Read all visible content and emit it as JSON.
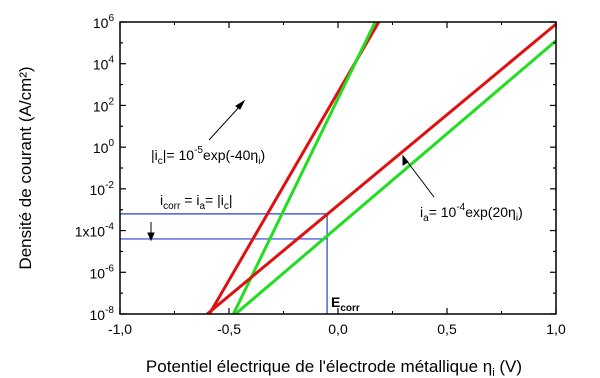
{
  "chart_data": {
    "type": "line",
    "xlabel": "Potentiel électrique de l'électrode métallique η",
    "xlabel_sub": "i",
    "xlabel_unit": " (V)",
    "ylabel": "Densité de courant (A/cm²)",
    "xlim": [
      -1.0,
      1.0
    ],
    "ylog": true,
    "ylim_exp": [
      -8,
      6
    ],
    "x_ticks": [
      "-1,0",
      "-0,5",
      "0,0",
      "0,5",
      "1,0"
    ],
    "y_ticks_exp": [
      "-8",
      "-6",
      "-4",
      "-2",
      "0",
      "2",
      "4",
      "6"
    ],
    "y_special_tick": "1x10",
    "y_special_tick_exp": "-4",
    "colors": {
      "red": "#e01010",
      "green": "#22dd22",
      "guide": "#2a3fd4"
    },
    "series": [
      {
        "color": "red",
        "x": [
          -0.59,
          0.22
        ],
        "y_exp": [
          -8,
          6.6
        ]
      },
      {
        "color": "green",
        "x": [
          -0.48,
          0.18
        ],
        "y_exp": [
          -8,
          6.2
        ]
      },
      {
        "color": "red",
        "x": [
          -0.6,
          1.0
        ],
        "y_exp": [
          -8,
          5.9
        ]
      },
      {
        "color": "green",
        "x": [
          -0.47,
          1.0
        ],
        "y_exp": [
          -8,
          5.1
        ]
      }
    ],
    "intersections": [
      {
        "x": -0.05,
        "y_exp": -3.2
      },
      {
        "x": -0.05,
        "y_exp": -4.4
      }
    ],
    "annotations": {
      "icorr": {
        "base": "i",
        "sub": "corr",
        "text": " = i",
        "sub2": "a",
        "text2": "= |i",
        "sub3": "c",
        "text3": "|"
      },
      "ic_eq": {
        "text1": "|i",
        "sub1": "c",
        "text2": "|= 10",
        "sup1": "-5",
        "text3": "exp(-40η",
        "sub2": "i",
        "text4": ")"
      },
      "ia_eq": {
        "text1": "i",
        "sub1": "a",
        "text2": "= 10",
        "sup1": "-4",
        "text3": "exp(20η",
        "sub2": "i",
        "text4": ")"
      },
      "ecorr": {
        "base": "E",
        "sub": "corr"
      }
    }
  }
}
